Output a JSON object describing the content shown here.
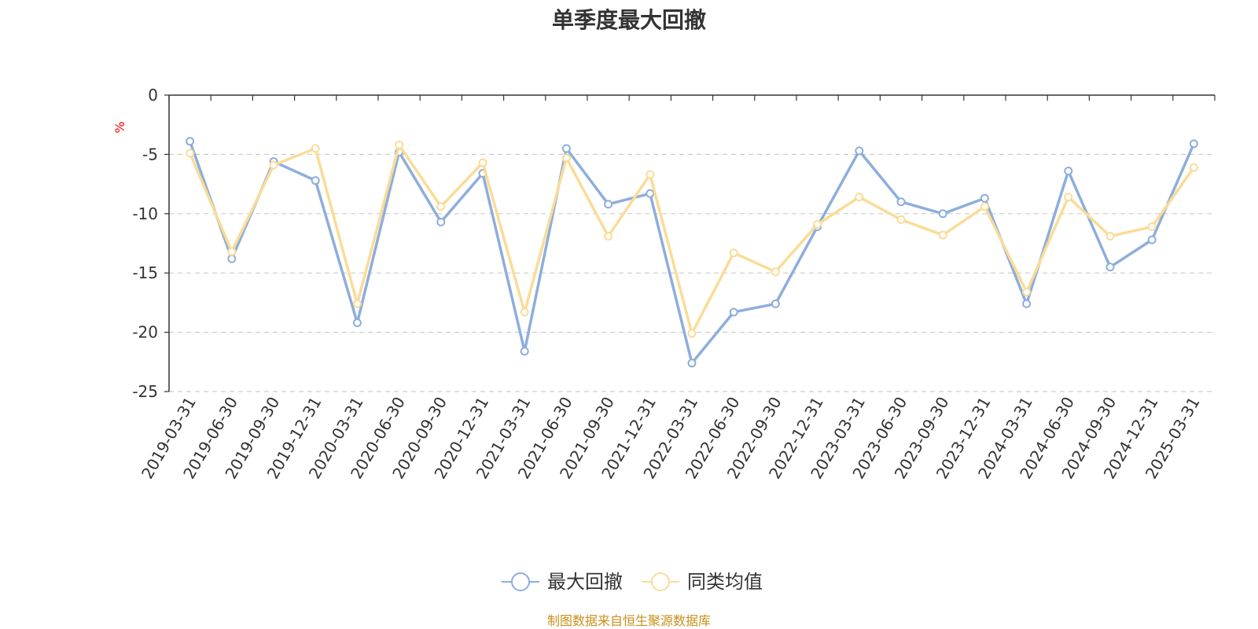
{
  "chart_data": {
    "type": "line",
    "title": "单季度最大回撤",
    "ylabel": "%",
    "xlabel": "",
    "ylim": [
      -25,
      0
    ],
    "yticks": [
      0,
      -5,
      -10,
      -15,
      -20,
      -25
    ],
    "grid": "horizontal-dashed",
    "legend_position": "bottom-center",
    "categories": [
      "2019-03-31",
      "2019-06-30",
      "2019-09-30",
      "2019-12-31",
      "2020-03-31",
      "2020-06-30",
      "2020-09-30",
      "2020-12-31",
      "2021-03-31",
      "2021-06-30",
      "2021-09-30",
      "2021-12-31",
      "2022-03-31",
      "2022-06-30",
      "2022-09-30",
      "2022-12-31",
      "2023-03-31",
      "2023-06-30",
      "2023-09-30",
      "2023-12-31",
      "2024-03-31",
      "2024-06-30",
      "2024-09-30",
      "2024-12-31",
      "2025-03-31"
    ],
    "series": [
      {
        "name": "最大回撤",
        "color": "#8eaedb",
        "values": [
          -3.9,
          -13.8,
          -5.6,
          -7.2,
          -19.2,
          -4.8,
          -10.7,
          -6.6,
          -21.6,
          -4.5,
          -9.2,
          -8.3,
          -22.6,
          -18.3,
          -17.6,
          -11.1,
          -4.7,
          -9.0,
          -10.0,
          -8.7,
          -17.6,
          -6.4,
          -14.5,
          -12.2,
          -4.1
        ]
      },
      {
        "name": "同类均值",
        "color": "#fadc97",
        "values": [
          -4.9,
          -13.2,
          -5.9,
          -4.5,
          -17.6,
          -4.2,
          -9.4,
          -5.7,
          -18.3,
          -5.3,
          -11.9,
          -6.7,
          -20.1,
          -13.3,
          -14.9,
          -10.9,
          -8.6,
          -10.5,
          -11.8,
          -9.4,
          -16.6,
          -8.6,
          -11.9,
          -11.1,
          -6.1
        ]
      }
    ]
  },
  "source_text": "制图数据来自恒生聚源数据库"
}
